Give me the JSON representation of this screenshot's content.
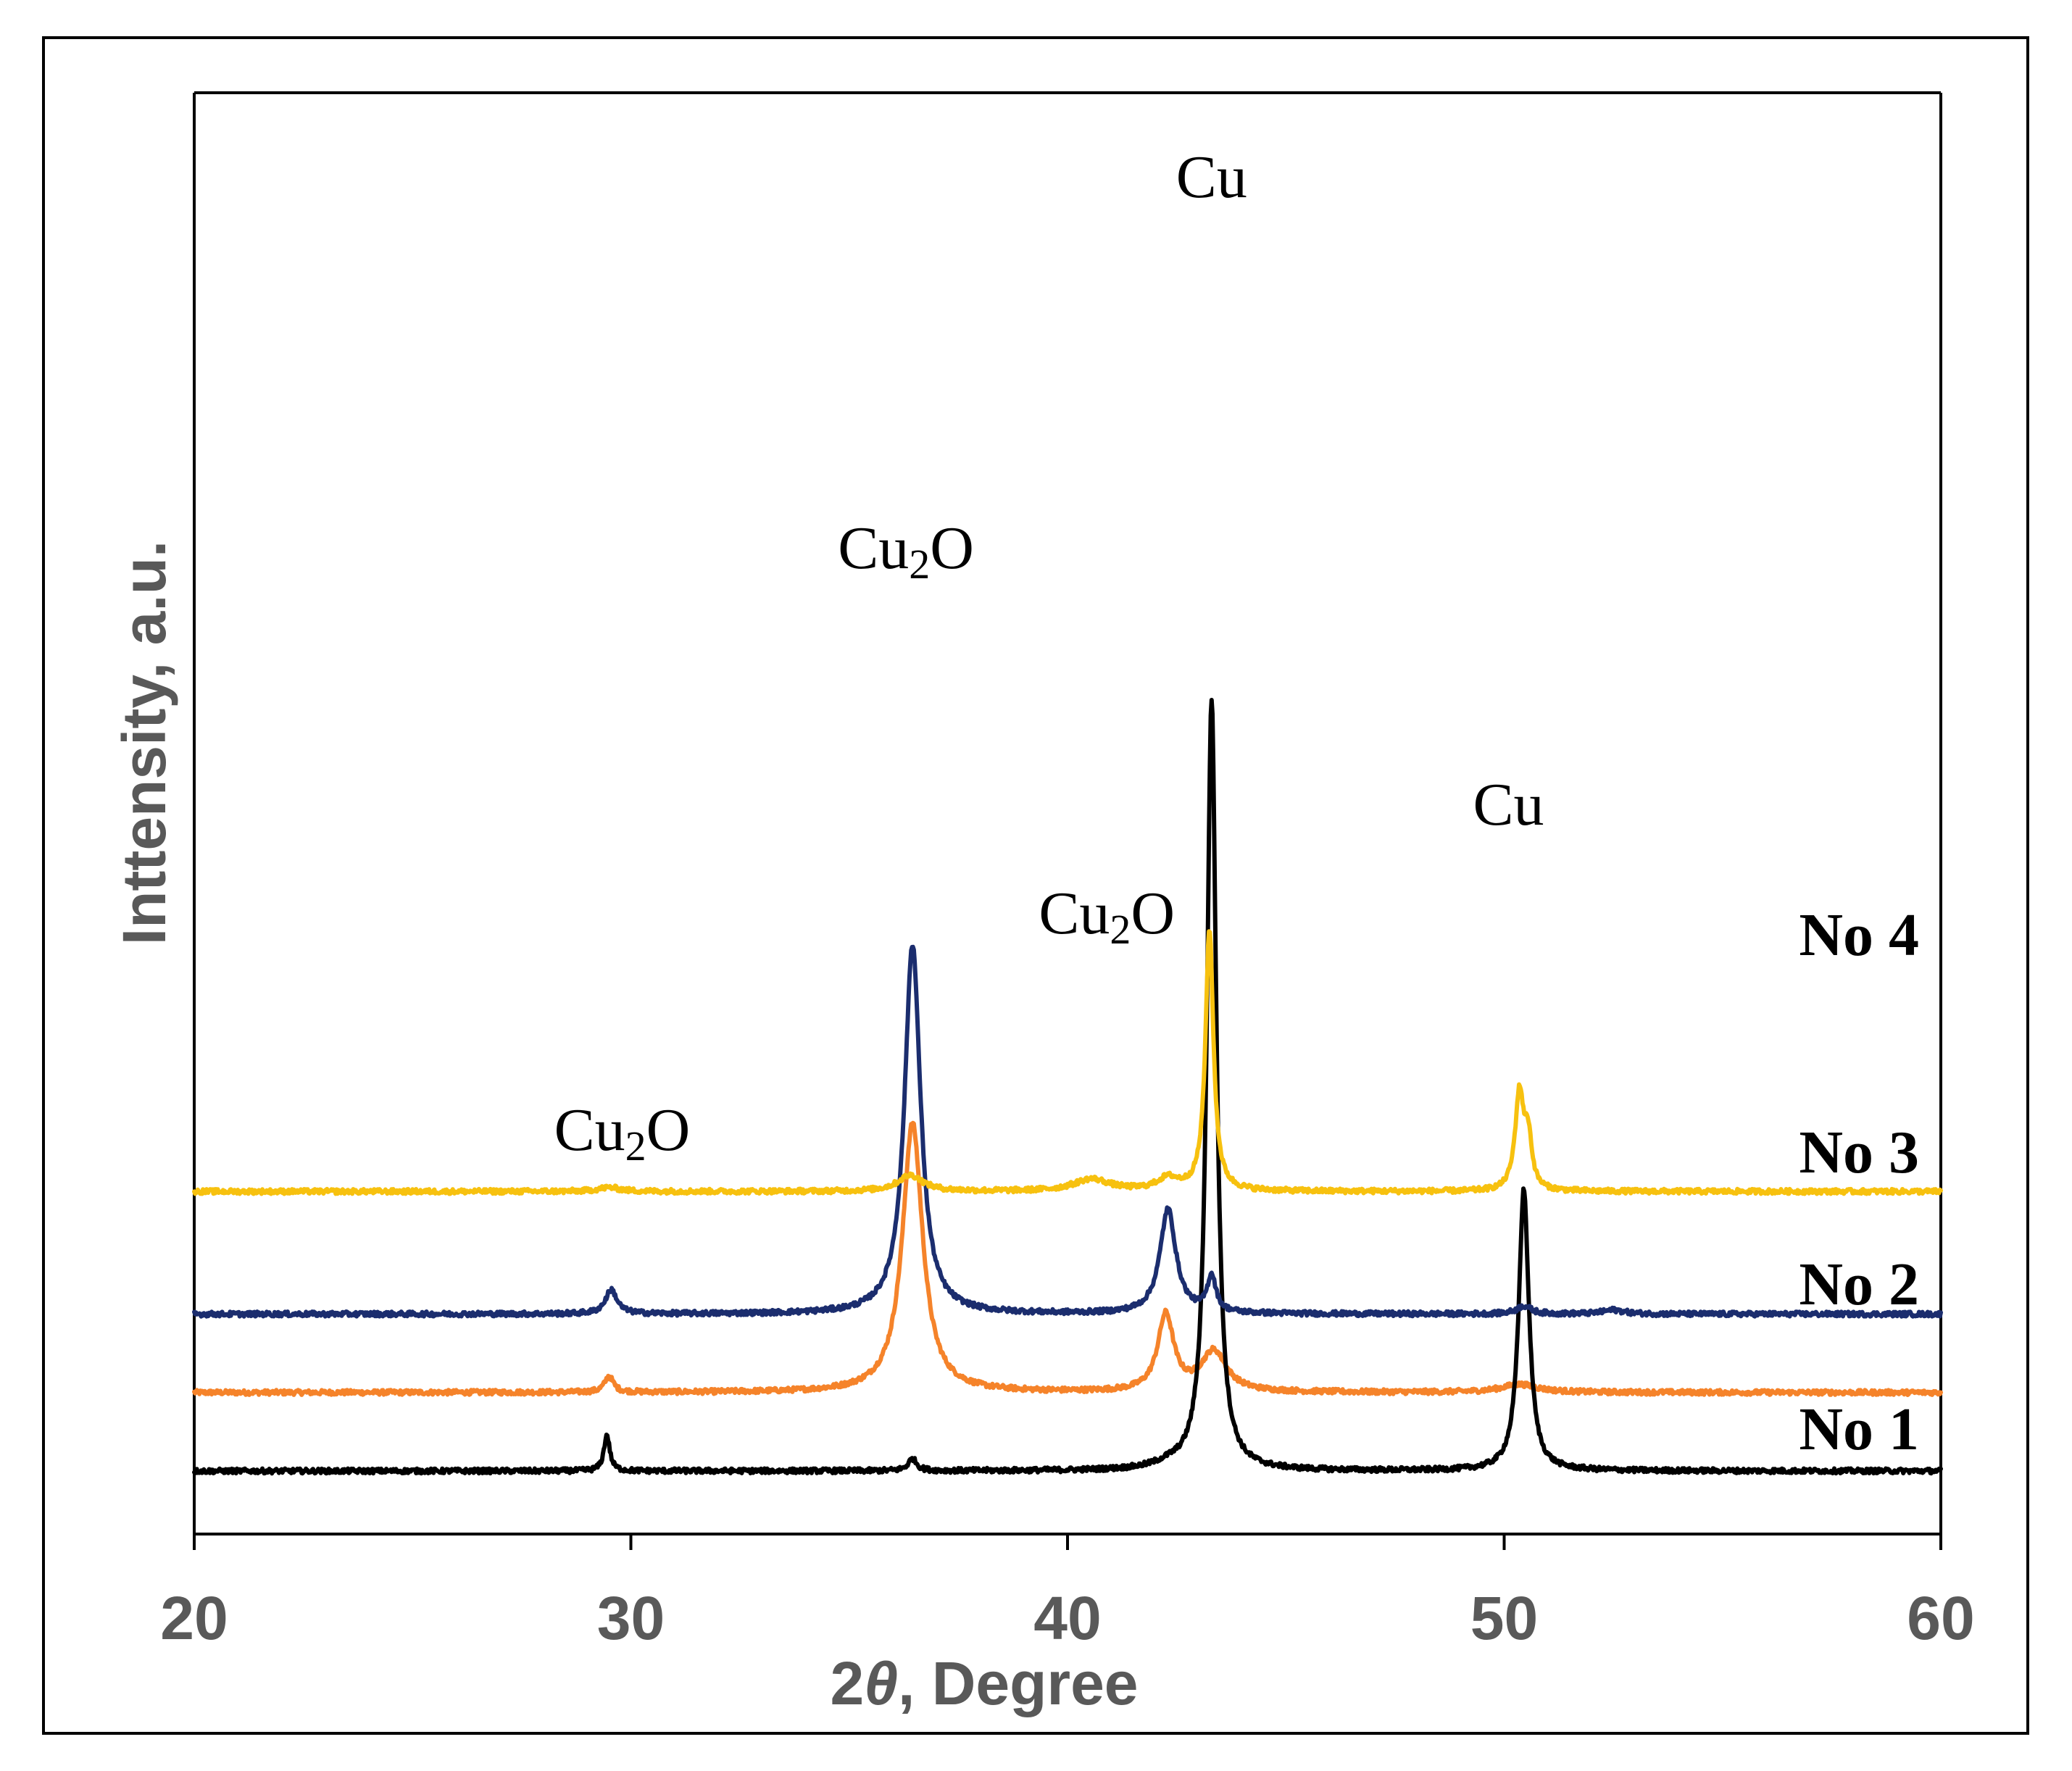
{
  "chart_data": {
    "type": "line",
    "title": "",
    "xlabel_prefix": "2",
    "xlabel_theta": "θ",
    "xlabel_suffix": ", Degree",
    "ylabel": "Inttensity, a.u.",
    "xlim": [
      20,
      60
    ],
    "xticks": [
      "20",
      "30",
      "40",
      "50",
      "60"
    ],
    "yticks": [],
    "grid": false,
    "legend": "labels at right end of each trace",
    "series": [
      {
        "name": "No 1",
        "label": "No 1",
        "color": "#000000",
        "baseline": 0,
        "peaks": [
          {
            "x": 29.45,
            "height": 0.09,
            "width": 0.08
          },
          {
            "x": 36.45,
            "height": 0.03,
            "width": 0.12
          },
          {
            "x": 42.3,
            "height": 0.01,
            "width": 0.4
          },
          {
            "x": 43.3,
            "height": 1.92,
            "width": 0.13
          },
          {
            "x": 50.45,
            "height": 0.7,
            "width": 0.14
          }
        ]
      },
      {
        "name": "No 2",
        "label": "No 2",
        "color": "#f5832a",
        "baseline": 0.195,
        "peaks": [
          {
            "x": 29.5,
            "height": 0.04,
            "width": 0.12
          },
          {
            "x": 36.45,
            "height": 0.67,
            "width": 0.28
          },
          {
            "x": 42.25,
            "height": 0.19,
            "width": 0.22
          },
          {
            "x": 43.35,
            "height": 0.1,
            "width": 0.35
          },
          {
            "x": 50.35,
            "height": 0.02,
            "width": 0.5
          }
        ]
      },
      {
        "name": "No 3",
        "label": "No 3",
        "color": "#1b2d6e",
        "baseline": 0.39,
        "peaks": [
          {
            "x": 29.55,
            "height": 0.06,
            "width": 0.16
          },
          {
            "x": 36.45,
            "height": 0.92,
            "width": 0.22
          },
          {
            "x": 42.3,
            "height": 0.26,
            "width": 0.22
          },
          {
            "x": 43.3,
            "height": 0.09,
            "width": 0.12
          },
          {
            "x": 50.45,
            "height": 0.02,
            "width": 0.2
          },
          {
            "x": 52.5,
            "height": 0.01,
            "width": 0.3
          }
        ]
      },
      {
        "name": "No 4",
        "label": "No 4",
        "color": "#f7c10f",
        "baseline": 0.695,
        "peaks": [
          {
            "x": 29.5,
            "height": 0.01,
            "width": 0.3
          },
          {
            "x": 36.4,
            "height": 0.04,
            "width": 0.35
          },
          {
            "x": 40.55,
            "height": 0.03,
            "width": 0.5
          },
          {
            "x": 42.3,
            "height": 0.03,
            "width": 0.3
          },
          {
            "x": 43.25,
            "height": 0.65,
            "width": 0.11
          },
          {
            "x": 50.35,
            "height": 0.24,
            "width": 0.12
          },
          {
            "x": 50.55,
            "height": 0.12,
            "width": 0.1
          }
        ]
      }
    ],
    "annotations": [
      {
        "text": "Cu",
        "x": 43.3
      },
      {
        "text": "Cu",
        "x": 50.1
      },
      {
        "text_main": "Cu",
        "text_sub": "2",
        "text_tail": "O",
        "x": 36.3
      },
      {
        "text_main": "Cu",
        "text_sub": "2",
        "text_tail": "O",
        "x": 40.9
      },
      {
        "text_main": "Cu",
        "text_sub": "2",
        "text_tail": "O",
        "x": 29.8
      }
    ]
  }
}
